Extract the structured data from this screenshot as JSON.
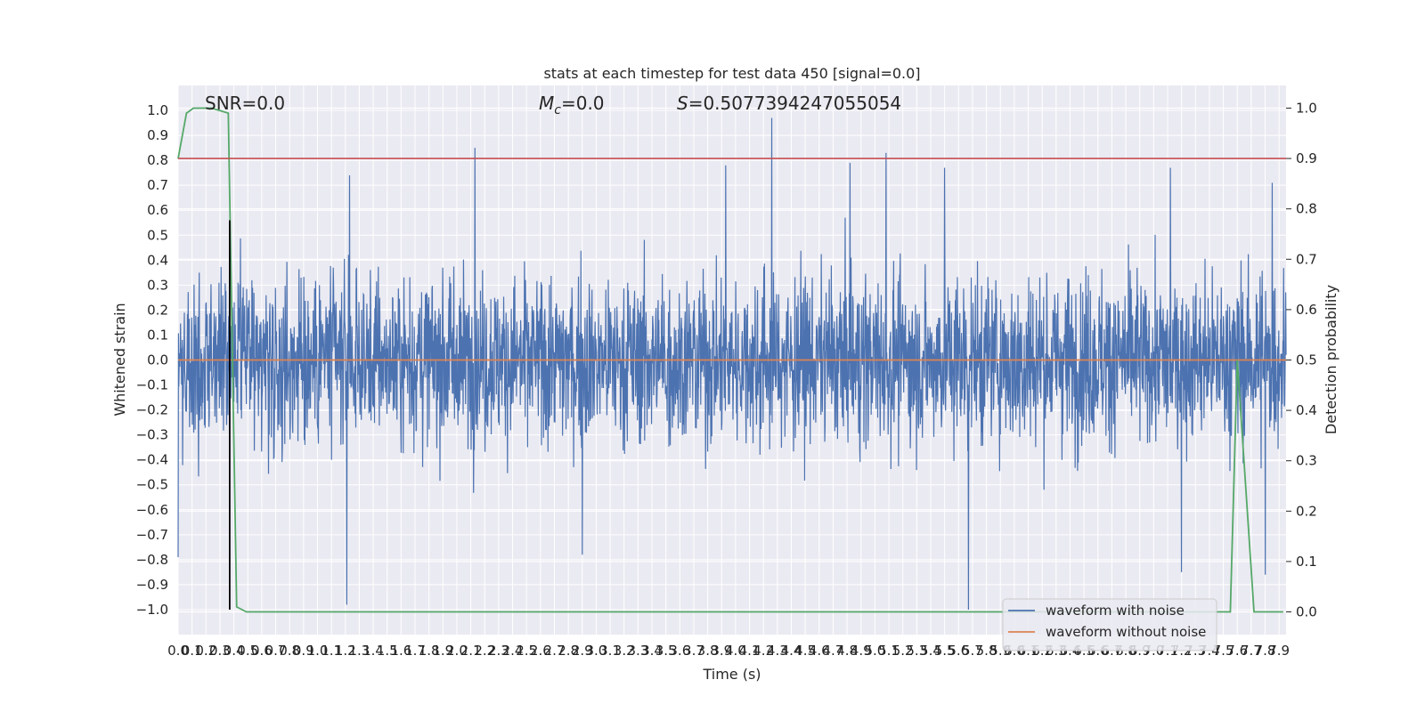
{
  "chart_data": {
    "type": "line",
    "title": "stats at each timestep for test data 450 [signal=0.0]",
    "xlabel": "Time (s)",
    "ylabel": "Whitened strain",
    "y2label": "Detection probability",
    "xlim": [
      0.0,
      7.95
    ],
    "ylim": [
      -1.1,
      1.1
    ],
    "y2lim": [
      -0.045,
      1.045
    ],
    "xticks": [
      "0.0",
      "0.1",
      "0.2",
      "0.3",
      "0.4",
      "0.5",
      "0.6",
      "0.7",
      "0.8",
      "0.9",
      "1.0",
      "1.1",
      "1.2",
      "1.3",
      "1.4",
      "1.5",
      "1.6",
      "1.7",
      "1.8",
      "1.9",
      "2.0",
      "2.1",
      "2.2",
      "2.3",
      "2.4",
      "2.5",
      "2.6",
      "2.7",
      "2.8",
      "2.9",
      "3.0",
      "3.1",
      "3.2",
      "3.3",
      "3.4",
      "3.5",
      "3.6",
      "3.7",
      "3.8",
      "3.9",
      "4.0",
      "4.1",
      "4.2",
      "4.3",
      "4.4",
      "4.5",
      "4.6",
      "4.7",
      "4.8",
      "4.9",
      "5.0",
      "5.1",
      "5.2",
      "5.3",
      "5.4",
      "5.5",
      "5.6",
      "5.7",
      "5.8",
      "5.9",
      "6.0",
      "6.1",
      "6.2",
      "6.3",
      "6.4",
      "6.5",
      "6.6",
      "6.7",
      "6.8",
      "6.9",
      "7.0",
      "7.1",
      "7.2",
      "7.3",
      "7.4",
      "7.5",
      "7.6",
      "7.7",
      "7.8",
      "7.9"
    ],
    "yticks": [
      "1.0",
      "0.9",
      "0.8",
      "0.7",
      "0.6",
      "0.5",
      "0.4",
      "0.3",
      "0.2",
      "0.1",
      "0.0",
      "−0.1",
      "−0.2",
      "−0.3",
      "−0.4",
      "−0.5",
      "−0.6",
      "−0.7",
      "−0.8",
      "−0.9",
      "−1.0"
    ],
    "y2ticks": [
      "1.0",
      "0.9",
      "0.8",
      "0.7",
      "0.6",
      "0.5",
      "0.4",
      "0.3",
      "0.2",
      "0.1",
      "0.0"
    ],
    "annotations": {
      "snr": "SNR=0.0",
      "mc_symbol": "M",
      "mc_sub": "c",
      "mc_value": "=0.0",
      "s_symbol": "S",
      "s_value": "=0.5077394247055054"
    },
    "legend": {
      "position": "lower right",
      "entries": [
        "waveform with noise",
        "waveform without noise"
      ]
    },
    "series": [
      {
        "name": "waveform with noise",
        "color": "#4c72b0",
        "noise_envelope": {
          "typical_amplitude": 0.38,
          "max": 0.97,
          "min": -1.0
        },
        "peaks": [
          {
            "t": 1.23,
            "v": 0.74
          },
          {
            "t": 2.13,
            "v": 0.85
          },
          {
            "t": 3.93,
            "v": 0.78
          },
          {
            "t": 4.26,
            "v": 0.97
          },
          {
            "t": 4.82,
            "v": 0.79
          },
          {
            "t": 5.08,
            "v": 0.83
          },
          {
            "t": 5.5,
            "v": 0.77
          },
          {
            "t": 7.12,
            "v": 0.77
          },
          {
            "t": 7.85,
            "v": 0.71
          }
        ],
        "troughs": [
          {
            "t": 1.21,
            "v": -0.98
          },
          {
            "t": 5.67,
            "v": -1.0
          },
          {
            "t": 7.2,
            "v": -0.85
          },
          {
            "t": 7.8,
            "v": -0.86
          },
          {
            "t": 0.0,
            "v": -0.79
          },
          {
            "t": 2.9,
            "v": -0.78
          }
        ]
      },
      {
        "name": "waveform without noise",
        "color": "#dd8452",
        "x": [
          0.0,
          7.95
        ],
        "y": [
          0.0,
          0.0
        ]
      },
      {
        "color": "#55a868",
        "axis": "right",
        "x": [
          0.0,
          0.06,
          0.11,
          0.24,
          0.36,
          0.42,
          0.49,
          0.65,
          7.55,
          7.6,
          7.72,
          7.93
        ],
        "y": [
          0.9,
          0.99,
          1.0,
          1.0,
          0.99,
          0.01,
          0.0,
          0.0,
          0.0,
          0.5,
          0.0,
          0.0
        ]
      }
    ],
    "hlines": [
      {
        "axis": "right",
        "y": 0.9,
        "color": "#c44e52"
      }
    ],
    "vlines": [
      {
        "x": 0.37,
        "ymin": -1.0,
        "ymax": 0.56,
        "color": "#000000"
      }
    ],
    "grid": true,
    "background": "#eaeaf2"
  }
}
